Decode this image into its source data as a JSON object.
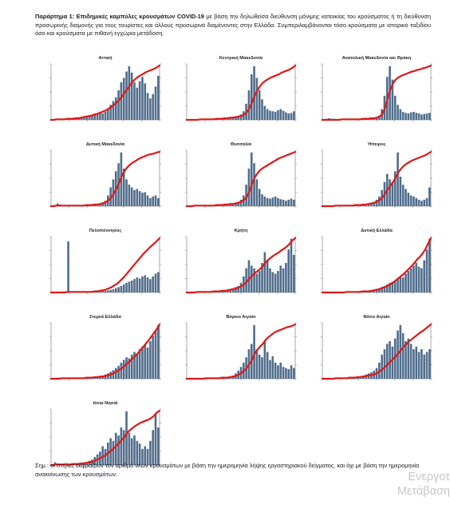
{
  "intro": {
    "lead": "Παράρτημα 1: Επιδημικές καμπύλες κρουσμάτων COVID-19",
    "text": " με βάση την δηλωθείσα διεύθυνση μόνιμης κατοικίας του κρούσματος ή τη διεύθυνση προσωρινής διαμονής για τους τουρίστες και άλλους προσωρινά διαμένοντες στην Ελλάδα. Συμπεριλαμβάνονται τόσο κρούσματα με ιστορικό ταξιδίου όσο και κρούσματα με πιθανή εγχώρια μετάδοση."
  },
  "note": "Σημ.: οι στήλες εκφράζουν τον αριθμό νέων κρουσμάτων με βάση την ημερομηνία λήψης εργαστηριακού δείγματος, και όχι με βάση την ημερομηνία ανακοίνωσης των κρουσμάτων.",
  "watermark": {
    "line1": "Ενεργοτ",
    "line2": "Μετάβαση"
  },
  "colors": {
    "bars": "#4f6d8c",
    "cumulative": "#e01818",
    "axis": "#555555"
  },
  "chart_data": [
    {
      "type": "bar",
      "title": "Αττική",
      "daily_relative": [
        0.01,
        0.01,
        0.02,
        0.01,
        0.01,
        0.01,
        0.01,
        0.01,
        0.02,
        0.03,
        0.04,
        0.05,
        0.06,
        0.07,
        0.06,
        0.08,
        0.1,
        0.12,
        0.14,
        0.12,
        0.15,
        0.2,
        0.28,
        0.35,
        0.42,
        0.55,
        0.7,
        0.78,
        0.9,
        1.0,
        0.88,
        0.7,
        0.6,
        0.72,
        0.8,
        0.68,
        0.5,
        0.4,
        0.48,
        0.62,
        0.82
      ],
      "cumulative_relative": [
        0.0,
        0.0,
        0.01,
        0.01,
        0.01,
        0.01,
        0.02,
        0.02,
        0.02,
        0.03,
        0.03,
        0.04,
        0.05,
        0.06,
        0.07,
        0.08,
        0.1,
        0.11,
        0.13,
        0.15,
        0.17,
        0.2,
        0.23,
        0.27,
        0.31,
        0.36,
        0.42,
        0.49,
        0.56,
        0.63,
        0.7,
        0.75,
        0.79,
        0.82,
        0.85,
        0.88,
        0.9,
        0.92,
        0.94,
        0.97,
        1.0
      ]
    },
    {
      "type": "bar",
      "title": "Κεντρική Μακεδονία",
      "daily_relative": [
        0.01,
        0.01,
        0.01,
        0.01,
        0.01,
        0.01,
        0.01,
        0.01,
        0.01,
        0.01,
        0.02,
        0.02,
        0.03,
        0.03,
        0.03,
        0.04,
        0.05,
        0.06,
        0.06,
        0.07,
        0.1,
        0.16,
        0.3,
        0.55,
        0.85,
        1.0,
        0.78,
        0.55,
        0.38,
        0.26,
        0.2,
        0.17,
        0.16,
        0.15,
        0.18,
        0.2,
        0.17,
        0.14,
        0.12,
        0.13,
        0.16
      ],
      "cumulative_relative": [
        0.0,
        0.0,
        0.0,
        0.0,
        0.0,
        0.01,
        0.01,
        0.01,
        0.01,
        0.01,
        0.01,
        0.02,
        0.02,
        0.02,
        0.03,
        0.03,
        0.04,
        0.04,
        0.05,
        0.06,
        0.07,
        0.09,
        0.13,
        0.2,
        0.31,
        0.44,
        0.54,
        0.62,
        0.68,
        0.72,
        0.75,
        0.78,
        0.8,
        0.82,
        0.84,
        0.87,
        0.89,
        0.91,
        0.93,
        0.96,
        1.0
      ]
    },
    {
      "type": "bar",
      "title": "Ανατολική Μακεδονία και Θράκη",
      "daily_relative": [
        0.01,
        0.02,
        0.03,
        0.02,
        0.02,
        0.01,
        0.01,
        0.02,
        0.02,
        0.01,
        0.01,
        0.01,
        0.02,
        0.02,
        0.02,
        0.02,
        0.02,
        0.03,
        0.03,
        0.04,
        0.05,
        0.08,
        0.2,
        0.45,
        0.8,
        1.0,
        0.75,
        0.45,
        0.28,
        0.2,
        0.15,
        0.13,
        0.12,
        0.14,
        0.15,
        0.13,
        0.12,
        0.1,
        0.11,
        0.12,
        0.13
      ],
      "cumulative_relative": [
        0.0,
        0.0,
        0.0,
        0.0,
        0.0,
        0.0,
        0.0,
        0.01,
        0.01,
        0.01,
        0.01,
        0.01,
        0.01,
        0.01,
        0.01,
        0.02,
        0.02,
        0.02,
        0.03,
        0.03,
        0.04,
        0.06,
        0.1,
        0.2,
        0.38,
        0.55,
        0.67,
        0.74,
        0.78,
        0.81,
        0.83,
        0.85,
        0.87,
        0.89,
        0.9,
        0.92,
        0.93,
        0.95,
        0.96,
        0.98,
        1.0
      ]
    },
    {
      "type": "bar",
      "title": "Δυτική Μακεδονία",
      "daily_relative": [
        0.01,
        0.02,
        0.05,
        0.03,
        0.02,
        0.02,
        0.01,
        0.01,
        0.01,
        0.01,
        0.01,
        0.01,
        0.01,
        0.01,
        0.01,
        0.02,
        0.02,
        0.03,
        0.05,
        0.07,
        0.1,
        0.2,
        0.35,
        0.5,
        0.65,
        0.8,
        1.0,
        0.7,
        0.5,
        0.4,
        0.35,
        0.3,
        0.32,
        0.28,
        0.25,
        0.26,
        0.2,
        0.15,
        0.18,
        0.2,
        0.15
      ],
      "cumulative_relative": [
        0.0,
        0.0,
        0.01,
        0.01,
        0.01,
        0.01,
        0.01,
        0.01,
        0.01,
        0.01,
        0.01,
        0.01,
        0.01,
        0.02,
        0.02,
        0.02,
        0.03,
        0.03,
        0.04,
        0.05,
        0.07,
        0.1,
        0.15,
        0.22,
        0.31,
        0.42,
        0.55,
        0.64,
        0.71,
        0.76,
        0.8,
        0.83,
        0.86,
        0.89,
        0.91,
        0.93,
        0.95,
        0.96,
        0.97,
        0.99,
        1.0
      ]
    },
    {
      "type": "bar",
      "title": "Θεσσαλία",
      "daily_relative": [
        0.01,
        0.01,
        0.02,
        0.02,
        0.02,
        0.01,
        0.01,
        0.01,
        0.01,
        0.01,
        0.02,
        0.02,
        0.02,
        0.03,
        0.03,
        0.03,
        0.04,
        0.05,
        0.06,
        0.08,
        0.12,
        0.2,
        0.4,
        0.7,
        1.0,
        0.8,
        0.5,
        0.32,
        0.22,
        0.18,
        0.15,
        0.14,
        0.16,
        0.18,
        0.15,
        0.13,
        0.12,
        0.1,
        0.12,
        0.14,
        0.12
      ],
      "cumulative_relative": [
        0.0,
        0.0,
        0.0,
        0.01,
        0.01,
        0.01,
        0.01,
        0.01,
        0.01,
        0.01,
        0.01,
        0.02,
        0.02,
        0.02,
        0.03,
        0.03,
        0.04,
        0.04,
        0.05,
        0.06,
        0.08,
        0.11,
        0.16,
        0.26,
        0.4,
        0.52,
        0.6,
        0.66,
        0.7,
        0.73,
        0.76,
        0.79,
        0.82,
        0.85,
        0.88,
        0.9,
        0.92,
        0.94,
        0.96,
        0.98,
        1.0
      ]
    },
    {
      "type": "bar",
      "title": "Ήπειρος",
      "daily_relative": [
        0.01,
        0.01,
        0.01,
        0.01,
        0.01,
        0.01,
        0.01,
        0.01,
        0.01,
        0.01,
        0.02,
        0.02,
        0.02,
        0.02,
        0.03,
        0.03,
        0.04,
        0.05,
        0.06,
        0.08,
        0.12,
        0.18,
        0.3,
        0.45,
        0.6,
        0.5,
        0.45,
        0.65,
        1.0,
        0.55,
        0.4,
        0.32,
        0.25,
        0.2,
        0.18,
        0.15,
        0.12,
        0.1,
        0.12,
        0.15,
        0.35
      ],
      "cumulative_relative": [
        0.0,
        0.0,
        0.0,
        0.0,
        0.0,
        0.01,
        0.01,
        0.01,
        0.01,
        0.01,
        0.01,
        0.01,
        0.02,
        0.02,
        0.02,
        0.03,
        0.03,
        0.04,
        0.05,
        0.06,
        0.08,
        0.11,
        0.15,
        0.22,
        0.3,
        0.37,
        0.44,
        0.52,
        0.62,
        0.69,
        0.74,
        0.78,
        0.81,
        0.84,
        0.86,
        0.88,
        0.9,
        0.92,
        0.94,
        0.97,
        1.0
      ]
    },
    {
      "type": "bar",
      "title": "Πελοπόννησος",
      "daily_relative": [
        0.01,
        0.01,
        0.01,
        0.01,
        0.01,
        0.01,
        0.95,
        0.01,
        0.01,
        0.01,
        0.01,
        0.01,
        0.01,
        0.01,
        0.01,
        0.01,
        0.02,
        0.02,
        0.02,
        0.03,
        0.03,
        0.04,
        0.05,
        0.06,
        0.08,
        0.1,
        0.12,
        0.15,
        0.18,
        0.2,
        0.22,
        0.25,
        0.28,
        0.26,
        0.3,
        0.32,
        0.28,
        0.25,
        0.3,
        0.35,
        0.38
      ],
      "cumulative_relative": [
        0.0,
        0.0,
        0.0,
        0.0,
        0.0,
        0.0,
        0.01,
        0.01,
        0.01,
        0.01,
        0.01,
        0.01,
        0.01,
        0.01,
        0.01,
        0.01,
        0.02,
        0.02,
        0.03,
        0.04,
        0.05,
        0.07,
        0.09,
        0.12,
        0.15,
        0.19,
        0.24,
        0.29,
        0.35,
        0.41,
        0.47,
        0.53,
        0.59,
        0.65,
        0.71,
        0.76,
        0.81,
        0.86,
        0.9,
        0.95,
        1.0
      ]
    },
    {
      "type": "bar",
      "title": "Κρήτη",
      "daily_relative": [
        0.01,
        0.01,
        0.01,
        0.01,
        0.01,
        0.01,
        0.01,
        0.01,
        0.01,
        0.02,
        0.02,
        0.02,
        0.02,
        0.03,
        0.04,
        0.05,
        0.06,
        0.08,
        0.1,
        0.12,
        0.18,
        0.3,
        0.45,
        0.6,
        0.5,
        0.45,
        0.35,
        0.4,
        0.55,
        0.75,
        0.6,
        0.45,
        0.38,
        0.35,
        0.4,
        0.5,
        0.45,
        0.55,
        0.8,
        1.0,
        0.7
      ],
      "cumulative_relative": [
        0.0,
        0.0,
        0.0,
        0.0,
        0.01,
        0.01,
        0.01,
        0.01,
        0.01,
        0.01,
        0.02,
        0.02,
        0.02,
        0.03,
        0.03,
        0.04,
        0.05,
        0.06,
        0.07,
        0.09,
        0.11,
        0.14,
        0.19,
        0.25,
        0.3,
        0.35,
        0.39,
        0.43,
        0.48,
        0.55,
        0.6,
        0.64,
        0.68,
        0.71,
        0.74,
        0.78,
        0.81,
        0.85,
        0.9,
        0.96,
        1.0
      ]
    },
    {
      "type": "bar",
      "title": "Δυτική Ελλάδα",
      "daily_relative": [
        0.01,
        0.01,
        0.01,
        0.01,
        0.01,
        0.01,
        0.01,
        0.01,
        0.01,
        0.01,
        0.01,
        0.01,
        0.01,
        0.02,
        0.02,
        0.02,
        0.03,
        0.03,
        0.04,
        0.05,
        0.06,
        0.08,
        0.1,
        0.12,
        0.15,
        0.18,
        0.2,
        0.22,
        0.25,
        0.3,
        0.28,
        0.35,
        0.4,
        0.45,
        0.5,
        0.55,
        0.48,
        0.45,
        0.6,
        0.8,
        1.0
      ],
      "cumulative_relative": [
        0.0,
        0.0,
        0.0,
        0.0,
        0.0,
        0.0,
        0.0,
        0.0,
        0.0,
        0.01,
        0.01,
        0.01,
        0.01,
        0.01,
        0.01,
        0.02,
        0.02,
        0.02,
        0.03,
        0.04,
        0.05,
        0.06,
        0.08,
        0.1,
        0.12,
        0.15,
        0.18,
        0.22,
        0.26,
        0.3,
        0.34,
        0.39,
        0.44,
        0.49,
        0.55,
        0.61,
        0.66,
        0.72,
        0.8,
        0.9,
        1.0
      ]
    },
    {
      "type": "bar",
      "title": "Στερεά Ελλάδα",
      "daily_relative": [
        0.01,
        0.01,
        0.02,
        0.02,
        0.01,
        0.01,
        0.01,
        0.01,
        0.01,
        0.01,
        0.01,
        0.02,
        0.02,
        0.02,
        0.02,
        0.03,
        0.03,
        0.04,
        0.05,
        0.06,
        0.08,
        0.1,
        0.13,
        0.16,
        0.2,
        0.24,
        0.3,
        0.35,
        0.4,
        0.38,
        0.45,
        0.5,
        0.45,
        0.55,
        0.6,
        0.65,
        0.58,
        0.7,
        0.8,
        0.9,
        1.0
      ],
      "cumulative_relative": [
        0.0,
        0.0,
        0.0,
        0.0,
        0.01,
        0.01,
        0.01,
        0.01,
        0.01,
        0.01,
        0.01,
        0.01,
        0.01,
        0.02,
        0.02,
        0.02,
        0.03,
        0.03,
        0.04,
        0.04,
        0.05,
        0.07,
        0.08,
        0.1,
        0.13,
        0.16,
        0.19,
        0.23,
        0.28,
        0.32,
        0.37,
        0.42,
        0.47,
        0.53,
        0.59,
        0.65,
        0.71,
        0.78,
        0.85,
        0.92,
        1.0
      ]
    },
    {
      "type": "bar",
      "title": "Βόρειο Αιγαίο",
      "daily_relative": [
        0.01,
        0.01,
        0.01,
        0.01,
        0.01,
        0.01,
        0.01,
        0.01,
        0.01,
        0.01,
        0.01,
        0.02,
        0.02,
        0.02,
        0.03,
        0.03,
        0.04,
        0.06,
        0.1,
        0.15,
        0.22,
        0.3,
        0.4,
        0.55,
        0.65,
        1.0,
        0.55,
        0.45,
        0.4,
        0.7,
        0.5,
        0.35,
        0.42,
        0.3,
        0.25,
        0.3,
        0.22,
        0.2,
        0.18,
        0.25,
        0.2
      ],
      "cumulative_relative": [
        0.0,
        0.0,
        0.0,
        0.0,
        0.0,
        0.0,
        0.0,
        0.01,
        0.01,
        0.01,
        0.01,
        0.01,
        0.01,
        0.02,
        0.02,
        0.02,
        0.03,
        0.04,
        0.05,
        0.07,
        0.1,
        0.14,
        0.19,
        0.26,
        0.34,
        0.46,
        0.53,
        0.59,
        0.64,
        0.71,
        0.76,
        0.8,
        0.84,
        0.87,
        0.89,
        0.91,
        0.93,
        0.95,
        0.96,
        0.98,
        1.0
      ]
    },
    {
      "type": "bar",
      "title": "Νότιο Αιγαίο",
      "daily_relative": [
        0.01,
        0.01,
        0.01,
        0.01,
        0.01,
        0.01,
        0.01,
        0.02,
        0.02,
        0.02,
        0.03,
        0.03,
        0.03,
        0.04,
        0.05,
        0.06,
        0.08,
        0.1,
        0.12,
        0.15,
        0.2,
        0.3,
        0.45,
        0.55,
        0.65,
        0.7,
        0.6,
        0.75,
        0.9,
        1.0,
        0.85,
        0.7,
        0.75,
        0.65,
        0.55,
        0.6,
        0.5,
        0.55,
        0.45,
        0.5,
        0.55
      ],
      "cumulative_relative": [
        0.0,
        0.0,
        0.0,
        0.0,
        0.0,
        0.01,
        0.01,
        0.01,
        0.01,
        0.01,
        0.02,
        0.02,
        0.02,
        0.03,
        0.03,
        0.04,
        0.05,
        0.06,
        0.07,
        0.08,
        0.1,
        0.13,
        0.17,
        0.21,
        0.26,
        0.31,
        0.36,
        0.41,
        0.47,
        0.53,
        0.59,
        0.64,
        0.69,
        0.73,
        0.77,
        0.81,
        0.85,
        0.88,
        0.92,
        0.96,
        1.0
      ]
    },
    {
      "type": "bar",
      "title": "Ιόνια Νησιά",
      "daily_relative": [
        0.01,
        0.05,
        0.03,
        0.02,
        0.02,
        0.01,
        0.01,
        0.02,
        0.02,
        0.02,
        0.03,
        0.04,
        0.05,
        0.06,
        0.08,
        0.1,
        0.15,
        0.2,
        0.25,
        0.35,
        0.3,
        0.42,
        0.5,
        0.45,
        0.6,
        0.55,
        0.7,
        0.65,
        1.0,
        0.6,
        0.5,
        0.55,
        0.45,
        0.4,
        0.3,
        0.35,
        0.3,
        0.45,
        0.65,
        0.95,
        0.7
      ],
      "cumulative_relative": [
        0.0,
        0.0,
        0.01,
        0.01,
        0.01,
        0.01,
        0.01,
        0.01,
        0.02,
        0.02,
        0.02,
        0.03,
        0.03,
        0.04,
        0.05,
        0.06,
        0.08,
        0.1,
        0.12,
        0.15,
        0.18,
        0.22,
        0.26,
        0.3,
        0.35,
        0.4,
        0.46,
        0.51,
        0.59,
        0.64,
        0.68,
        0.72,
        0.75,
        0.78,
        0.8,
        0.82,
        0.84,
        0.87,
        0.91,
        0.97,
        1.0
      ]
    }
  ]
}
